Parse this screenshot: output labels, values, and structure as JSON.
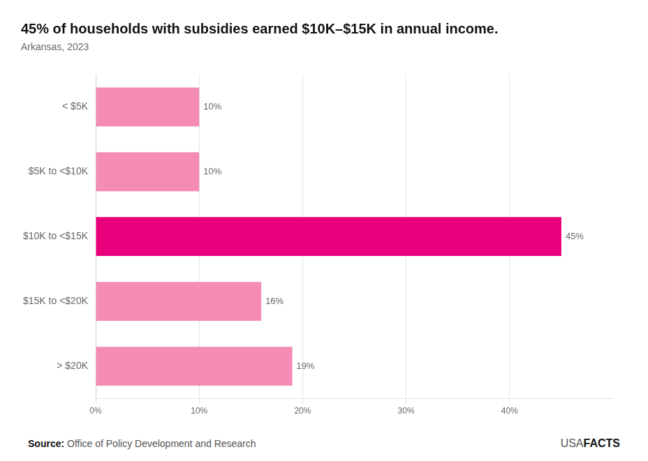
{
  "chart_data": {
    "type": "bar",
    "orientation": "horizontal",
    "title": "45% of households with subsidies earned $10K–$15K in annual income.",
    "subtitle": "Arkansas, 2023",
    "categories": [
      "< $5K",
      "$5K to <$10K",
      "$10K to <$15K",
      "$15K to <$20K",
      "> $20K"
    ],
    "values": [
      10,
      10,
      45,
      16,
      19
    ],
    "colors": [
      "#f48cb6",
      "#f48cb6",
      "#e8007d",
      "#f48cb6",
      "#f48cb6"
    ],
    "xlim": [
      0,
      50
    ],
    "xticks": [
      {
        "value": 0,
        "label": "0%"
      },
      {
        "value": 10,
        "label": "10%"
      },
      {
        "value": 20,
        "label": "20%"
      },
      {
        "value": 30,
        "label": "30%"
      },
      {
        "value": 40,
        "label": "40%"
      }
    ],
    "grid": "x",
    "data_labels": true,
    "value_labels": [
      "10%",
      "10%",
      "45%",
      "16%",
      "19%"
    ],
    "annotations": [
      "Source:",
      "Office of Policy Development and Research",
      "USA",
      "FACTS"
    ]
  }
}
